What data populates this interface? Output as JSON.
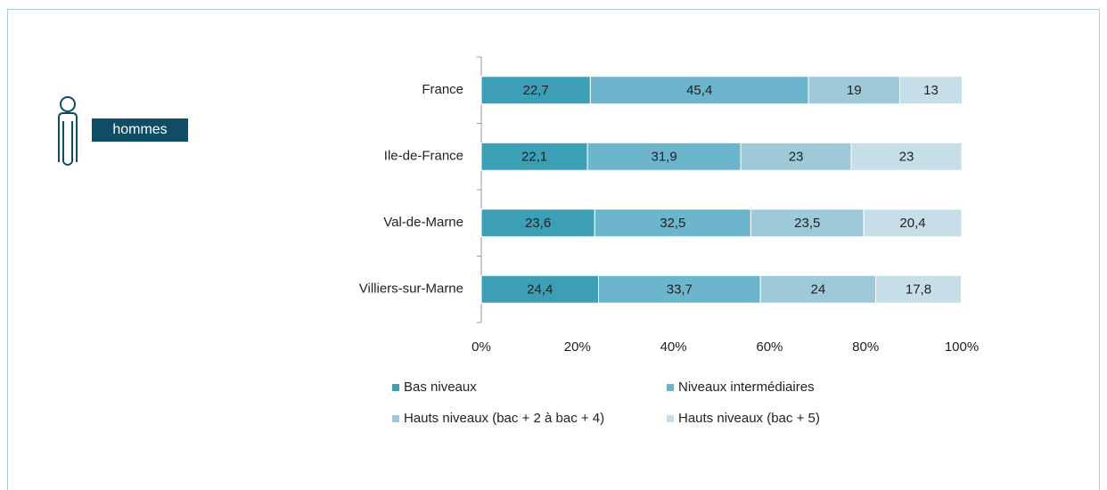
{
  "badge": "hommes",
  "chart_data": {
    "type": "stacked-bar-horizontal",
    "categories": [
      "France",
      "Ile-de-France",
      "Val-de-Marne",
      "Villiers-sur-Marne"
    ],
    "series": [
      {
        "name": "Bas niveaux",
        "color": "#3d9fb6",
        "values": [
          22.7,
          22.1,
          23.6,
          24.4
        ],
        "value_labels": [
          "22,7",
          "22,1",
          "23,6",
          "24,4"
        ]
      },
      {
        "name": "Niveaux intermédiaires",
        "color": "#6cb5cc",
        "values": [
          45.4,
          31.9,
          32.5,
          33.7
        ],
        "value_labels": [
          "45,4",
          "31,9",
          "32,5",
          "33,7"
        ]
      },
      {
        "name": "Hauts niveaux (bac + 2 à bac + 4)",
        "color": "#9dc9d8",
        "values": [
          19,
          23,
          23.5,
          24
        ],
        "value_labels": [
          "19",
          "23",
          "23,5",
          "24"
        ]
      },
      {
        "name": "Hauts niveaux (bac + 5)",
        "color": "#c6dee7",
        "values": [
          13,
          23,
          20.4,
          17.8
        ],
        "value_labels": [
          "13",
          "23",
          "20,4",
          "17,8"
        ]
      }
    ],
    "xlim": [
      0,
      100
    ],
    "xticks": [
      {
        "value": 0,
        "label": "0%"
      },
      {
        "value": 20,
        "label": "20%"
      },
      {
        "value": 40,
        "label": "40%"
      },
      {
        "value": 60,
        "label": "60%"
      },
      {
        "value": 80,
        "label": "80%"
      },
      {
        "value": 100,
        "label": "100%"
      }
    ],
    "legend": "bottom"
  }
}
